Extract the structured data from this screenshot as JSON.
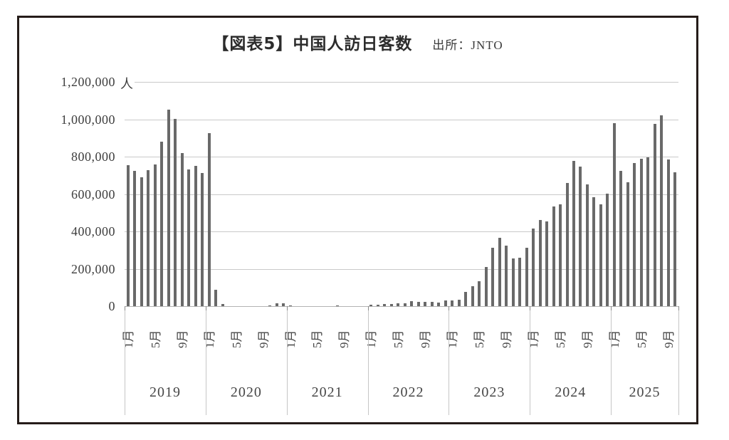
{
  "title": {
    "main": "【図表5】中国人訪日客数",
    "source": "出所：JNTO"
  },
  "y_axis": {
    "unit": "人",
    "tick_labels_top_down": [
      "1,200,000",
      "1,000,000",
      "800,000",
      "600,000",
      "400,000",
      "200,000",
      "0"
    ]
  },
  "chart_data": {
    "type": "bar",
    "title": "【図表5】中国人訪日客数",
    "source": "出所：JNTO",
    "ylabel_unit": "人",
    "ylim": [
      0,
      1200000
    ],
    "ytick_interval": 200000,
    "grid": true,
    "legend": "none",
    "bar_color": "#696969",
    "x_month_ticks": {
      "month_offsets": [
        0,
        4,
        8
      ],
      "labels": [
        "1月",
        "5月",
        "9月"
      ]
    },
    "series_by_year": [
      {
        "year": "2019",
        "monthly_visitors": [
          754400,
          723600,
          691300,
          726100,
          756400,
          880700,
          1050400,
          1000600,
          819100,
          730600,
          751000,
          710700
        ]
      },
      {
        "year": "2020",
        "monthly_visitors": [
          924800,
          87200,
          10400,
          300,
          100,
          100,
          800,
          1000,
          1100,
          2700,
          15000,
          17000
        ]
      },
      {
        "year": "2021",
        "monthly_visitors": [
          4000,
          900,
          1100,
          1200,
          900,
          1300,
          1600,
          2100,
          1300,
          1700,
          1200,
          800
        ]
      },
      {
        "year": "2022",
        "monthly_visitors": [
          9700,
          9000,
          11000,
          11400,
          13700,
          14300,
          26700,
          24400,
          21500,
          21600,
          21000,
          30400
        ]
      },
      {
        "year": "2023",
        "monthly_visitors": [
          31200,
          36200,
          75700,
          108300,
          134400,
          208500,
          313300,
          364100,
          325600,
          256300,
          258900,
          310700
        ]
      },
      {
        "year": "2024",
        "monthly_visitors": [
          415900,
          459400,
          452400,
          533600,
          545400,
          660900,
          776500,
          745800,
          652300,
          582800,
          546300,
          603500
        ]
      },
      {
        "year": "2025",
        "monthly_visitors": [
          980000,
          723000,
          662000,
          765000,
          790000,
          798000,
          975000,
          1020000,
          784000,
          716000
        ]
      }
    ]
  }
}
